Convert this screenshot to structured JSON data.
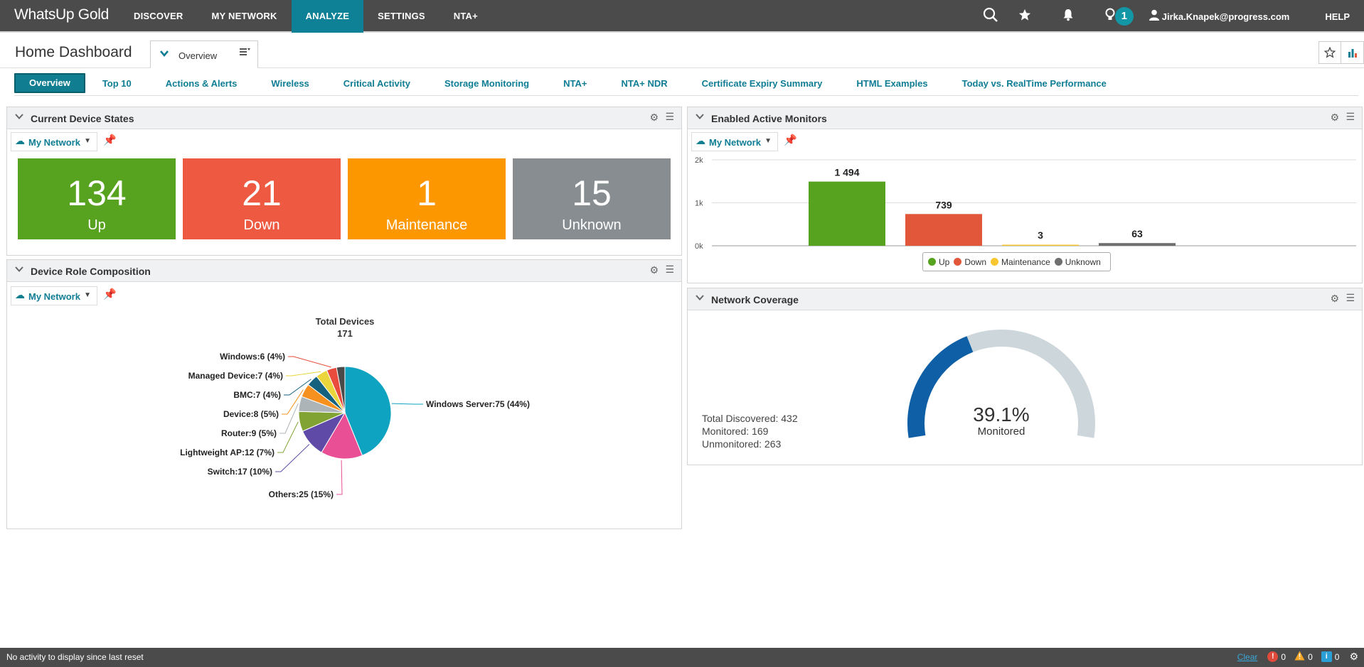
{
  "app": {
    "logo": "WhatsUp Gold",
    "nav": [
      "DISCOVER",
      "MY NETWORK",
      "ANALYZE",
      "SETTINGS",
      "NTA+"
    ],
    "active_nav": "ANALYZE",
    "notification_count": "1",
    "user": "Jirka.Knapek@progress.com",
    "help": "HELP"
  },
  "page": {
    "title": "Home Dashboard",
    "view_tab": "Overview"
  },
  "tabs": [
    "Overview",
    "Top 10",
    "Actions & Alerts",
    "Wireless",
    "Critical Activity",
    "Storage Monitoring",
    "NTA+",
    "NTA+ NDR",
    "Certificate Expiry Summary",
    "HTML Examples",
    "Today vs. RealTime Performance"
  ],
  "device_states": {
    "title": "Current Device States",
    "network": "My Network",
    "tiles": [
      {
        "count": "134",
        "label": "Up",
        "color": "#57a21e"
      },
      {
        "count": "21",
        "label": "Down",
        "color": "#ee5a41"
      },
      {
        "count": "1",
        "label": "Maintenance",
        "color": "#fd9700"
      },
      {
        "count": "15",
        "label": "Unknown",
        "color": "#878d91"
      }
    ]
  },
  "active_monitors": {
    "title": "Enabled Active Monitors",
    "network": "My Network",
    "legend": [
      "Up",
      "Down",
      "Maintenance",
      "Unknown"
    ]
  },
  "role_composition": {
    "title": "Device Role Composition",
    "network": "My Network",
    "total_label": "Total Devices",
    "total_value": "171"
  },
  "network_coverage": {
    "title": "Network Coverage",
    "total_discovered": "Total Discovered: 432",
    "monitored": "Monitored: 169",
    "unmonitored": "Unmonitored: 263",
    "percent": "39.1%",
    "percent_value": 39.1,
    "percent_label": "Monitored"
  },
  "status_bar": {
    "message": "No activity to display since last reset",
    "clear": "Clear",
    "errors": "0",
    "warnings": "0",
    "info": "0"
  },
  "chart_data": [
    {
      "type": "bar",
      "categories": [
        "Up",
        "Down",
        "Maintenance",
        "Unknown"
      ],
      "values": [
        1494,
        739,
        3,
        63
      ],
      "value_labels": [
        "1 494",
        "739",
        "3",
        "63"
      ],
      "colors": [
        "#57a21e",
        "#e2573a",
        "#f8c630",
        "#6f6f6f"
      ],
      "yticks": [
        "0k",
        "1k",
        "2k"
      ],
      "ylim": [
        0,
        2000
      ],
      "legend": "bottom"
    },
    {
      "type": "pie",
      "slices": [
        {
          "label": "Windows Server:75 (44%)",
          "value": 75,
          "color": "#0ea3c0"
        },
        {
          "label": "Others:25 (15%)",
          "value": 25,
          "color": "#e94f94"
        },
        {
          "label": "Switch:17 (10%)",
          "value": 17,
          "color": "#5f4aa8"
        },
        {
          "label": "Lightweight AP:12 (7%)",
          "value": 12,
          "color": "#80a333"
        },
        {
          "label": "Router:9 (5%)",
          "value": 9,
          "color": "#adb4b8"
        },
        {
          "label": "Device:8 (5%)",
          "value": 8,
          "color": "#f6901e"
        },
        {
          "label": "BMC:7 (4%)",
          "value": 7,
          "color": "#16627e"
        },
        {
          "label": "Managed Device:7 (4%)",
          "value": 7,
          "color": "#ead53c"
        },
        {
          "label": "Windows:6 (4%)",
          "value": 6,
          "color": "#e94b3c"
        },
        {
          "label": "",
          "value": 5,
          "color": "#4a4a4a"
        }
      ]
    }
  ]
}
